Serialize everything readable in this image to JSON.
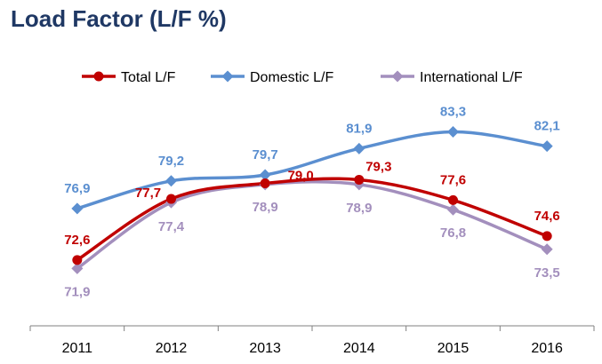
{
  "header": {
    "title": "Load Factor (L/F %)"
  },
  "chart_data": {
    "type": "line",
    "title": "Load Factor (L/F %)",
    "xlabel": "",
    "ylabel": "",
    "ylim": [
      68,
      86
    ],
    "grid": false,
    "legend_position": "top",
    "categories": [
      "2011",
      "2012",
      "2013",
      "2014",
      "2015",
      "2016"
    ],
    "series": [
      {
        "name": "Total L/F",
        "color": "#c00000",
        "marker": "circle",
        "values": [
          72.6,
          77.7,
          79.0,
          79.3,
          77.6,
          74.6
        ],
        "labels": [
          "72,6",
          "77,7",
          "79,0",
          "79,3",
          "77,6",
          "74,6"
        ]
      },
      {
        "name": "Domestic L/F",
        "color": "#5b8fd0",
        "marker": "diamond",
        "values": [
          76.9,
          79.2,
          79.7,
          81.9,
          83.3,
          82.1
        ],
        "labels": [
          "76,9",
          "79,2",
          "79,7",
          "81,9",
          "83,3",
          "82,1"
        ]
      },
      {
        "name": "International L/F",
        "color": "#a38fbd",
        "marker": "diamond",
        "values": [
          71.9,
          77.4,
          78.9,
          78.9,
          76.8,
          73.5
        ],
        "labels": [
          "71,9",
          "77,4",
          "78,9",
          "78,9",
          "76,8",
          "73,5"
        ]
      }
    ]
  }
}
